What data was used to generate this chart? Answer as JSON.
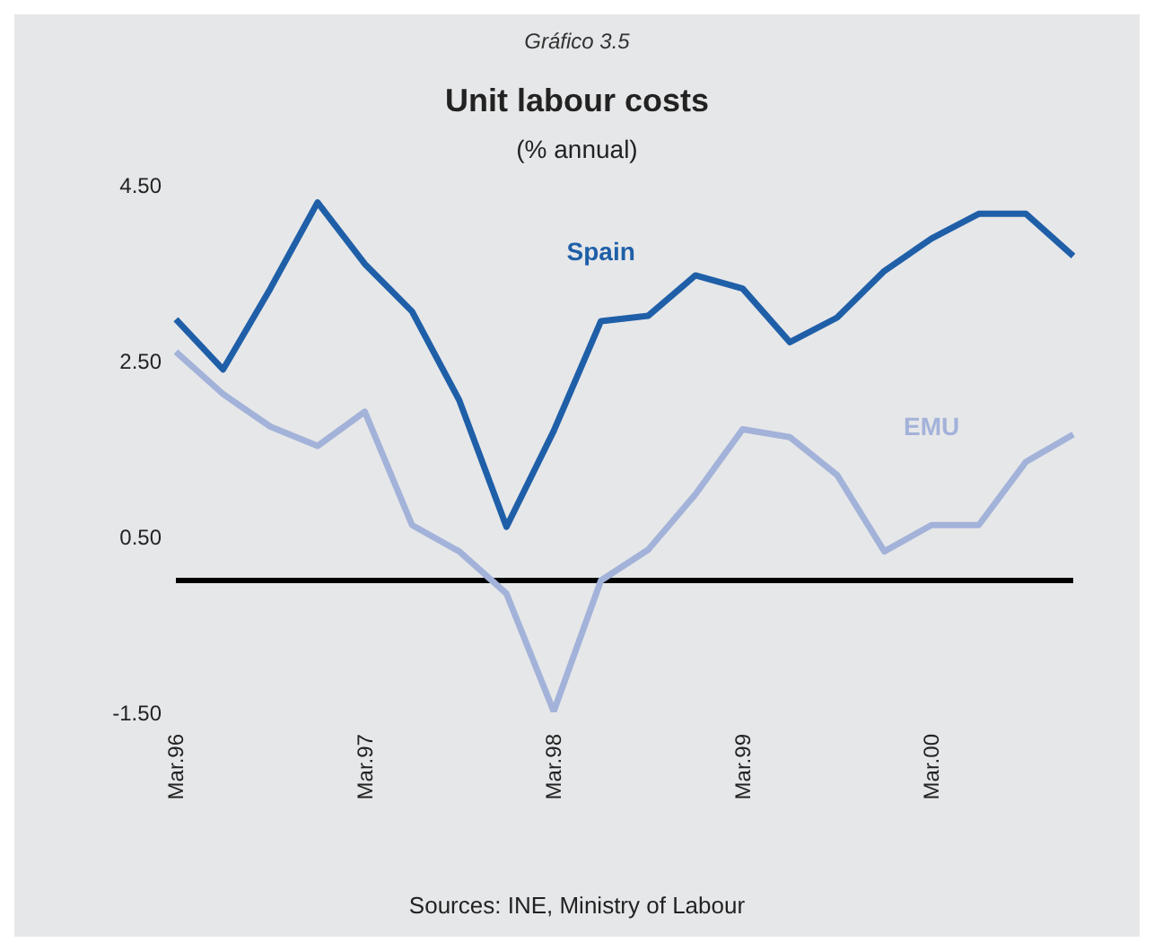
{
  "chart_data": {
    "type": "line",
    "title": "Unit labour costs",
    "subtitle": "(% annual)",
    "annotations": [
      "Gráfico 3.5",
      "Sources: INE, Ministry of Labour"
    ],
    "categories": [
      "Mar.96",
      null,
      null,
      null,
      "Mar.97",
      null,
      null,
      null,
      "Mar.98",
      null,
      null,
      null,
      "Mar.99",
      null,
      null,
      null,
      "Mar.00",
      null,
      null,
      null
    ],
    "series": [
      {
        "name": "Spain",
        "color": "#1f5fa8",
        "values": [
          2.97,
          2.4,
          3.32,
          4.3,
          3.6,
          3.06,
          2.05,
          0.61,
          1.7,
          2.95,
          3.01,
          3.47,
          3.32,
          2.71,
          2.99,
          3.52,
          3.89,
          4.17,
          4.17,
          3.69
        ]
      },
      {
        "name": "EMU",
        "color": "#a3b2d9",
        "values": [
          2.6,
          2.12,
          1.75,
          1.53,
          1.92,
          0.63,
          0.33,
          -0.15,
          -1.49,
          0.0,
          0.35,
          0.98,
          1.72,
          1.63,
          1.2,
          0.33,
          0.63,
          0.63,
          1.35,
          1.66
        ]
      }
    ],
    "ylim": [
      -1.5,
      4.5
    ],
    "yticks": [
      {
        "value": -1.5,
        "label": "-1.50"
      },
      {
        "value": 0.5,
        "label": "0.50"
      },
      {
        "value": 2.5,
        "label": "2.50"
      },
      {
        "value": 4.5,
        "label": "4.50"
      }
    ],
    "ref_lines": [
      {
        "axis": "y",
        "value": 0,
        "color": "#000000"
      }
    ],
    "grid": false,
    "marker": "none",
    "line_style": "solid"
  }
}
